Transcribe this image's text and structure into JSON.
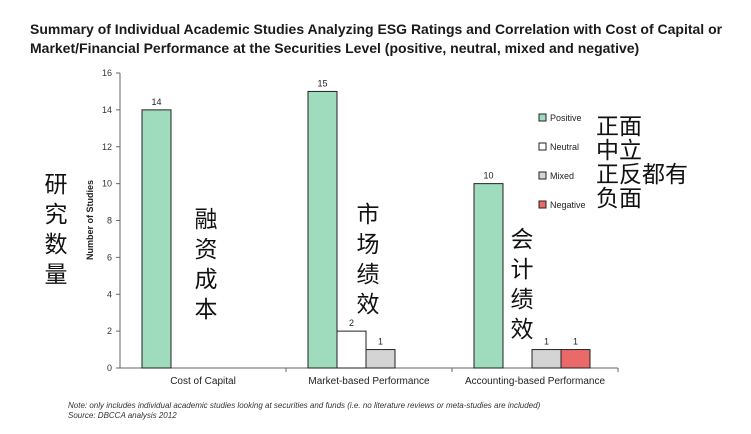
{
  "chart_data": {
    "type": "bar",
    "title_line1": "Summary of Individual Academic Studies Analyzing ESG Ratings and Correlation with Cost of Capital or",
    "title_line2": "Market/Financial Performance at the Securities Level (positive, neutral, mixed and negative)",
    "ylabel": "Number of Studies",
    "ylim": [
      0,
      16
    ],
    "yticks": [
      0,
      2,
      4,
      6,
      8,
      10,
      12,
      14,
      16
    ],
    "categories": [
      "Cost of Capital",
      "Market-based Performance",
      "Accounting-based Performance"
    ],
    "series": [
      {
        "name": "Positive",
        "color": "#9fdcbd",
        "values": [
          14,
          15,
          10
        ]
      },
      {
        "name": "Neutral",
        "color": "#ffffff",
        "values": [
          0,
          2,
          0
        ]
      },
      {
        "name": "Mixed",
        "color": "#d4d4d4",
        "values": [
          0,
          1,
          1
        ]
      },
      {
        "name": "Negative",
        "color": "#ea6a6a",
        "values": [
          0,
          0,
          1
        ]
      }
    ],
    "grid": false,
    "legend_placement": "right"
  },
  "annotations": {
    "ylabel_cn": "研究数量",
    "cost_of_capital_cn": "融资成本",
    "market_perf_cn": "市场绩效",
    "accounting_perf_cn": "会计绩效",
    "legend_cn": [
      "正面",
      "中立",
      "正反都有",
      "负面"
    ]
  },
  "footnote": {
    "note": "Note: only includes individual academic studies looking at securities and funds (i.e. no literature reviews or meta-studies are included)",
    "source": "Source: DBCCA analysis 2012"
  }
}
